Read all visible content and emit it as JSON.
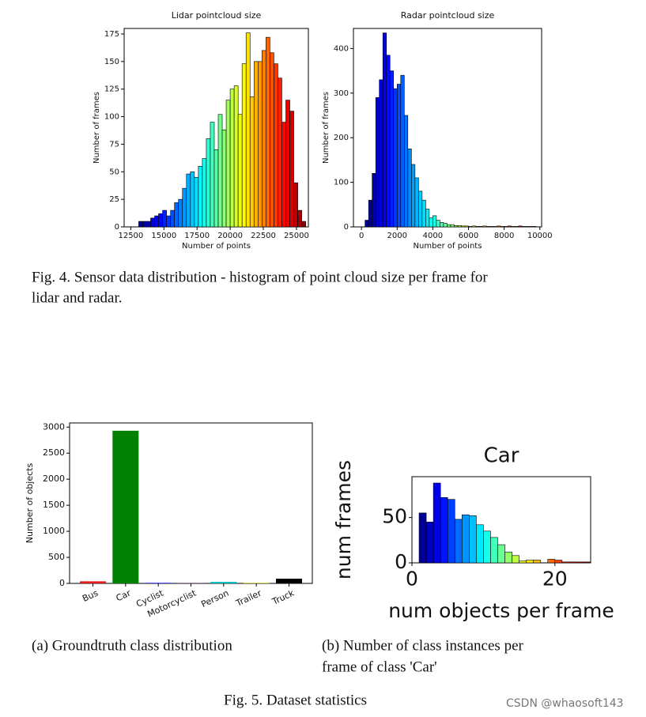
{
  "chart_data": [
    {
      "type": "histogram",
      "title": "Lidar pointcloud size",
      "xlabel": "Number of points",
      "ylabel": "Number of frames",
      "colormap": "jet",
      "bins": [
        13100,
        13400,
        13700,
        14000,
        14300,
        14600,
        14900,
        15200,
        15500,
        15800,
        16100,
        16400,
        16700,
        17000,
        17300,
        17600,
        17900,
        18200,
        18500,
        18800,
        19100,
        19400,
        19700,
        20000,
        20300,
        20600,
        20900,
        21200,
        21500,
        21800,
        22100,
        22400,
        22700,
        23000,
        23300,
        23600,
        23900,
        24200,
        24500,
        24800,
        25100,
        25400,
        25700
      ],
      "values": [
        5,
        5,
        5,
        8,
        10,
        12,
        15,
        10,
        15,
        22,
        25,
        35,
        48,
        50,
        45,
        55,
        62,
        80,
        95,
        70,
        102,
        88,
        115,
        125,
        128,
        102,
        148,
        176,
        118,
        150,
        150,
        160,
        172,
        158,
        148,
        135,
        95,
        115,
        105,
        40,
        15,
        5
      ],
      "xlim": [
        12000,
        25900
      ],
      "xticks": [
        12500,
        15000,
        17500,
        20000,
        22500,
        25000
      ],
      "ylim": [
        0,
        180
      ],
      "yticks": [
        0,
        25,
        50,
        75,
        100,
        125,
        150,
        175
      ]
    },
    {
      "type": "histogram",
      "title": "Radar pointcloud size",
      "xlabel": "Number of points",
      "ylabel": "Number of frames",
      "colormap": "jet",
      "bins": [
        200,
        400,
        600,
        800,
        1000,
        1200,
        1400,
        1600,
        1800,
        2000,
        2200,
        2400,
        2600,
        2800,
        3000,
        3200,
        3400,
        3600,
        3800,
        4000,
        4200,
        4400,
        4600,
        4800,
        5000,
        5200,
        5400,
        5600,
        5800,
        6000,
        6200,
        6400,
        6600,
        6800,
        7000,
        7200,
        7400,
        7600,
        7800,
        8000,
        8200,
        8400,
        8600,
        8800,
        9000,
        9200,
        9400,
        9600,
        9800
      ],
      "values": [
        15,
        60,
        120,
        290,
        330,
        435,
        385,
        350,
        310,
        320,
        340,
        250,
        175,
        140,
        110,
        80,
        60,
        40,
        20,
        25,
        15,
        10,
        8,
        5,
        5,
        3,
        3,
        2,
        2,
        1,
        2,
        1,
        1,
        2,
        1,
        1,
        1,
        2,
        1,
        1,
        2,
        1,
        1,
        2,
        1,
        1,
        1,
        1
      ],
      "xlim": [
        -450,
        10100
      ],
      "xticks": [
        0,
        2000,
        4000,
        6000,
        8000,
        10000
      ],
      "ylim": [
        0,
        445
      ],
      "yticks": [
        0,
        100,
        200,
        300,
        400
      ]
    },
    {
      "type": "bar",
      "ylabel": "Number of objects",
      "categories": [
        "Bus",
        "Car",
        "Cyclist",
        "Motorcyclist",
        "Person",
        "Trailer",
        "Truck"
      ],
      "values": [
        40,
        2930,
        10,
        5,
        30,
        10,
        90
      ],
      "colors": [
        "#e41a1c",
        "#008000",
        "#0000ff",
        "#800080",
        "#00bfbf",
        "#bfbf00",
        "#000000"
      ],
      "ylim": [
        0,
        3080
      ],
      "yticks": [
        0,
        500,
        1000,
        1500,
        2000,
        2500,
        3000
      ]
    },
    {
      "type": "histogram",
      "title": "Car",
      "xlabel": "num objects per frame",
      "ylabel": "num frames",
      "colormap": "jet",
      "bins": [
        1,
        2,
        3,
        4,
        5,
        6,
        7,
        8,
        9,
        10,
        11,
        12,
        13,
        14,
        15,
        16,
        17,
        18,
        19,
        20,
        21,
        22,
        23,
        24,
        25
      ],
      "values": [
        55,
        45,
        88,
        72,
        70,
        48,
        53,
        52,
        42,
        35,
        28,
        20,
        12,
        8,
        2,
        3,
        3,
        0,
        4,
        3,
        1,
        1,
        1,
        1
      ],
      "xlim": [
        0,
        25
      ],
      "xticks": [
        0,
        20
      ],
      "ylim": [
        0,
        95
      ],
      "yticks": [
        0,
        50
      ]
    }
  ],
  "captions": {
    "fig4": [
      "Fig. 4.  Sensor data distribution - histogram of point cloud size per frame for",
      "lidar and radar."
    ],
    "fig5a": "(a) Groundtruth class distribution",
    "fig5b": [
      "(b)  Number of class instances per",
      "frame of class 'Car'"
    ],
    "fig5": "Fig. 5.  Dataset statistics"
  },
  "watermark": "CSDN @whaosoft143"
}
